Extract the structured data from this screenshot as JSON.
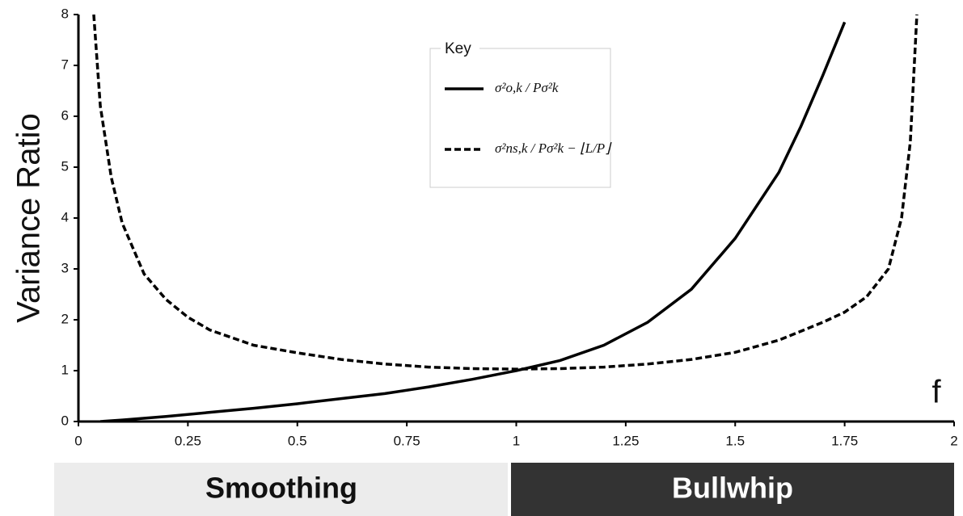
{
  "chart_data": {
    "type": "line",
    "y_label": "Variance Ratio",
    "x_label": "f",
    "legend_title": "Key",
    "xlim": [
      0,
      2
    ],
    "xticks": [
      0,
      0.25,
      0.5,
      0.75,
      1,
      1.25,
      1.5,
      1.75,
      2
    ],
    "ylim": [
      0,
      8
    ],
    "yticks": [
      0,
      1,
      2,
      3,
      4,
      5,
      6,
      7,
      8
    ],
    "grid": false,
    "series": [
      {
        "name": "σ²o,k / Pσ²k",
        "color": "#000000",
        "dash": false,
        "x": [
          0.05,
          0.1,
          0.2,
          0.3,
          0.4,
          0.5,
          0.6,
          0.7,
          0.8,
          0.9,
          1.0,
          1.1,
          1.2,
          1.3,
          1.4,
          1.5,
          1.6,
          1.65,
          1.7,
          1.75
        ],
        "values": [
          0,
          0.03,
          0.1,
          0.18,
          0.26,
          0.35,
          0.45,
          0.55,
          0.68,
          0.83,
          1.0,
          1.2,
          1.5,
          1.95,
          2.6,
          3.6,
          4.9,
          5.8,
          6.8,
          7.85
        ]
      },
      {
        "name": "σ²ns,k / Pσ²k − ⌊L/P⌋",
        "color": "#000000",
        "dash": true,
        "x": [
          0.035,
          0.05,
          0.075,
          0.1,
          0.15,
          0.2,
          0.25,
          0.3,
          0.4,
          0.5,
          0.6,
          0.7,
          0.8,
          0.9,
          1.0,
          1.1,
          1.2,
          1.3,
          1.4,
          1.5,
          1.6,
          1.7,
          1.75,
          1.8,
          1.85,
          1.88,
          1.9,
          1.915
        ],
        "values": [
          8,
          6.2,
          4.8,
          3.9,
          2.9,
          2.4,
          2.05,
          1.8,
          1.5,
          1.35,
          1.22,
          1.13,
          1.07,
          1.04,
          1.03,
          1.04,
          1.07,
          1.13,
          1.22,
          1.36,
          1.6,
          1.95,
          2.15,
          2.45,
          3.0,
          4.0,
          5.5,
          8
        ]
      }
    ],
    "bands": [
      "Smoothing",
      "Bullwhip"
    ]
  }
}
